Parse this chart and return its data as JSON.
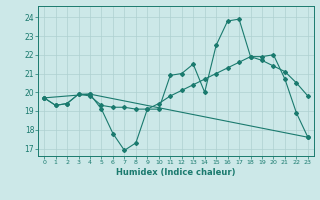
{
  "title": "",
  "xlabel": "Humidex (Indice chaleur)",
  "bg_color": "#cce8e8",
  "line_color": "#1a7a6e",
  "grid_color": "#aed0d0",
  "xlim": [
    -0.5,
    23.5
  ],
  "ylim": [
    16.6,
    24.6
  ],
  "xticks": [
    0,
    1,
    2,
    3,
    4,
    5,
    6,
    7,
    8,
    9,
    10,
    11,
    12,
    13,
    14,
    15,
    16,
    17,
    18,
    19,
    20,
    21,
    22,
    23
  ],
  "yticks": [
    17,
    18,
    19,
    20,
    21,
    22,
    23,
    24
  ],
  "line1_x": [
    0,
    1,
    2,
    3,
    4,
    5,
    6,
    7,
    8,
    9,
    10,
    11,
    12,
    13,
    14,
    15,
    16,
    17,
    18,
    19,
    20,
    21,
    22,
    23
  ],
  "line1_y": [
    19.7,
    19.3,
    19.4,
    19.9,
    19.9,
    19.1,
    17.8,
    16.9,
    17.3,
    19.1,
    19.1,
    20.9,
    21.0,
    21.5,
    20.0,
    22.5,
    23.8,
    23.9,
    21.9,
    21.9,
    22.0,
    20.7,
    18.9,
    17.6
  ],
  "line2_x": [
    0,
    1,
    2,
    3,
    4,
    5,
    6,
    7,
    8,
    9,
    10,
    11,
    12,
    13,
    14,
    15,
    16,
    17,
    18,
    19,
    20,
    21,
    22,
    23
  ],
  "line2_y": [
    19.7,
    19.3,
    19.4,
    19.9,
    19.8,
    19.3,
    19.2,
    19.2,
    19.1,
    19.1,
    19.4,
    19.8,
    20.1,
    20.4,
    20.7,
    21.0,
    21.3,
    21.6,
    21.9,
    21.7,
    21.4,
    21.1,
    20.5,
    19.8
  ],
  "line3_x": [
    0,
    4,
    23
  ],
  "line3_y": [
    19.7,
    19.9,
    17.6
  ]
}
